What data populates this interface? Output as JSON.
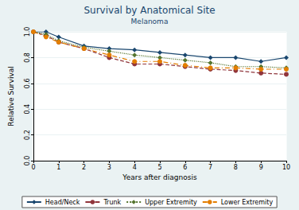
{
  "chart_data": {
    "type": "line",
    "title": "Survival by Anatomical Site",
    "subtitle": "Melanoma",
    "x_label": "Years after diagnosis",
    "y_label": "Relative Survival",
    "x": [
      0,
      0.5,
      1,
      2,
      3,
      4,
      5,
      6,
      7,
      8,
      9,
      10
    ],
    "series": [
      {
        "name": "Head/Neck",
        "color": "#1a476f",
        "marker": "diamond",
        "line_style": "solid",
        "values": [
          1.0,
          1.0,
          0.96,
          0.89,
          0.87,
          0.86,
          0.84,
          0.82,
          0.8,
          0.8,
          0.77,
          0.8
        ]
      },
      {
        "name": "Trunk",
        "color": "#90353b",
        "marker": "circle",
        "line_style": "dash",
        "values": [
          1.0,
          0.97,
          0.92,
          0.87,
          0.8,
          0.75,
          0.75,
          0.73,
          0.71,
          0.7,
          0.68,
          0.67
        ]
      },
      {
        "name": "Upper Extremity",
        "color": "#55752f",
        "marker": "diamond",
        "line_style": "dot",
        "values": [
          1.0,
          0.98,
          0.93,
          0.88,
          0.85,
          0.82,
          0.8,
          0.78,
          0.76,
          0.73,
          0.73,
          0.72
        ]
      },
      {
        "name": "Lower Extremity",
        "color": "#e37e00",
        "marker": "circle",
        "line_style": "dashdot",
        "values": [
          1.0,
          0.96,
          0.92,
          0.87,
          0.82,
          0.77,
          0.77,
          0.74,
          0.72,
          0.72,
          0.71,
          0.71
        ]
      }
    ],
    "xlim": [
      0,
      10
    ],
    "xticks": [
      0,
      1,
      2,
      3,
      4,
      5,
      6,
      7,
      8,
      9,
      10
    ],
    "ylim": [
      0,
      1
    ],
    "yticks": [
      {
        "value": 0,
        "label": "0.0"
      },
      0.2,
      0.4,
      0.6,
      0.8,
      {
        "value": 1,
        "label": "1.0"
      }
    ],
    "grid": true,
    "legend": "bottom"
  }
}
